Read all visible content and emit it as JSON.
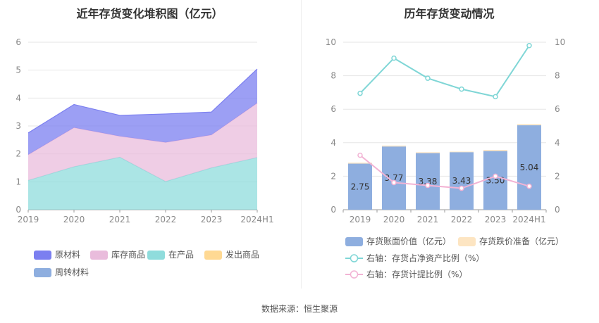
{
  "source_text": "数据来源：恒生聚源",
  "chart_data": [
    {
      "type": "area",
      "title": "近年存货变化堆积图（亿元）",
      "categories": [
        "2019",
        "2020",
        "2021",
        "2022",
        "2023",
        "2024H1"
      ],
      "ylim": [
        0,
        6
      ],
      "yticks": [
        "0",
        "1",
        "2",
        "3",
        "4",
        "5",
        "6"
      ],
      "grid": true,
      "series": [
        {
          "name": "原材料",
          "color": "#7b7ff0",
          "values": [
            0.78,
            0.83,
            0.75,
            1.02,
            0.82,
            1.22
          ]
        },
        {
          "name": "库存商品",
          "color": "#e9bcdc",
          "values": [
            0.92,
            1.4,
            0.75,
            1.4,
            1.18,
            1.95
          ]
        },
        {
          "name": "在产品",
          "color": "#8fdcdc",
          "values": [
            1.05,
            1.54,
            1.88,
            1.01,
            1.5,
            1.87
          ]
        },
        {
          "name": "发出商品",
          "color": "#ffd993",
          "values": [
            0,
            0,
            0,
            0,
            0,
            0
          ]
        },
        {
          "name": "周转材料",
          "color": "#8eaedf",
          "values": [
            0,
            0,
            0,
            0,
            0,
            0
          ]
        }
      ]
    },
    {
      "type": "bar",
      "title": "历年存货变动情况",
      "categories": [
        "2019",
        "2020",
        "2021",
        "2022",
        "2023",
        "2024H1"
      ],
      "ylim": [
        0,
        10
      ],
      "yticks": [
        "0",
        "2",
        "4",
        "6",
        "8",
        "10"
      ],
      "y2lim": [
        0,
        10
      ],
      "y2ticks": [
        "0",
        "2",
        "4",
        "6",
        "8",
        "10"
      ],
      "series": [
        {
          "name": "存货账面价值（亿元）",
          "color": "#8eaedf",
          "kind": "bar",
          "values": [
            2.75,
            3.77,
            3.38,
            3.43,
            3.5,
            5.04
          ],
          "labels": [
            "2.75",
            "3.77",
            "3.38",
            "3.43",
            "3.50",
            "5.04"
          ]
        },
        {
          "name": "存货跌价准备（亿元）",
          "color": "#fde5c2",
          "kind": "bar-stack",
          "values": [
            0.06,
            0.06,
            0.05,
            0.04,
            0.07,
            0.07
          ]
        },
        {
          "name": "右轴：存货占净资产比例（%）",
          "color": "#7fd6d6",
          "kind": "line",
          "axis": "right",
          "values": [
            6.95,
            9.05,
            7.85,
            7.2,
            6.75,
            9.8
          ]
        },
        {
          "name": "右轴：存货计提比例（%）",
          "color": "#f2b3d4",
          "kind": "line",
          "axis": "right",
          "values": [
            3.25,
            1.62,
            1.45,
            1.28,
            2.0,
            1.4
          ]
        }
      ]
    }
  ]
}
